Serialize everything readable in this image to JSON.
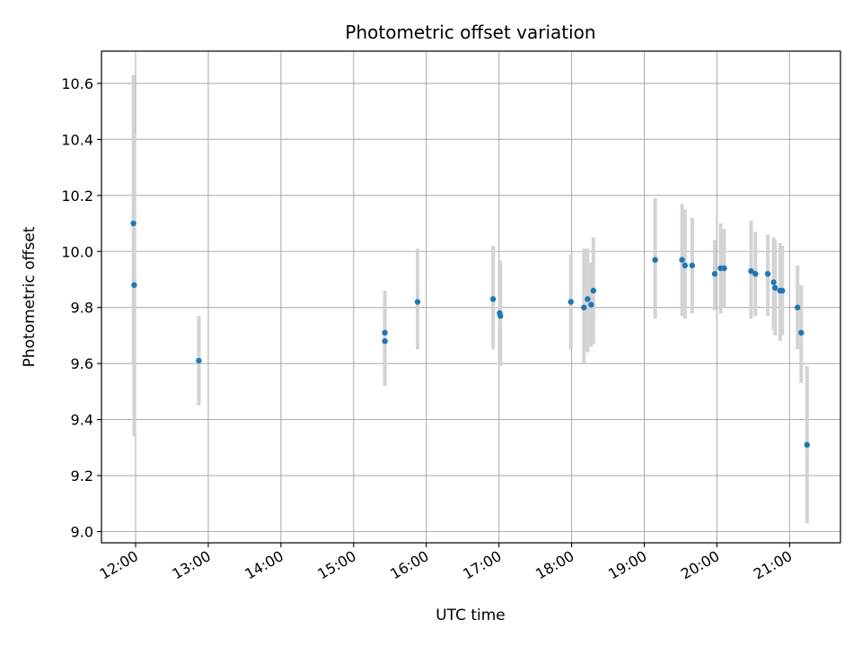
{
  "chart_data": {
    "type": "scatter",
    "title": "Photometric offset variation",
    "xlabel": "UTC time",
    "ylabel": "Photometric offset",
    "x_unit": "hours UTC",
    "xlim": [
      11.53,
      21.7
    ],
    "ylim": [
      8.96,
      10.715
    ],
    "grid": true,
    "x_ticks": [
      {
        "value": 12,
        "label": "12:00"
      },
      {
        "value": 13,
        "label": "13:00"
      },
      {
        "value": 14,
        "label": "14:00"
      },
      {
        "value": 15,
        "label": "15:00"
      },
      {
        "value": 16,
        "label": "16:00"
      },
      {
        "value": 17,
        "label": "17:00"
      },
      {
        "value": 18,
        "label": "18:00"
      },
      {
        "value": 19,
        "label": "19:00"
      },
      {
        "value": 20,
        "label": "20:00"
      },
      {
        "value": 21,
        "label": "21:00"
      }
    ],
    "y_ticks": [
      {
        "value": 9.0,
        "label": "9.0"
      },
      {
        "value": 9.2,
        "label": "9.2"
      },
      {
        "value": 9.4,
        "label": "9.4"
      },
      {
        "value": 9.6,
        "label": "9.6"
      },
      {
        "value": 9.8,
        "label": "9.8"
      },
      {
        "value": 10.0,
        "label": "10.0"
      },
      {
        "value": 10.2,
        "label": "10.2"
      },
      {
        "value": 10.4,
        "label": "10.4"
      },
      {
        "value": 10.6,
        "label": "10.6"
      }
    ],
    "marker_color": "#1f77b4",
    "errorbar_color": "#d3d3d3",
    "points": [
      {
        "x": 11.97,
        "y": 10.1,
        "err_low": 9.6,
        "err_high": 10.63
      },
      {
        "x": 11.98,
        "y": 9.88,
        "err_low": 9.34,
        "err_high": 10.42
      },
      {
        "x": 12.87,
        "y": 9.61,
        "err_low": 9.45,
        "err_high": 9.77
      },
      {
        "x": 15.43,
        "y": 9.71,
        "err_low": 9.52,
        "err_high": 9.86
      },
      {
        "x": 15.43,
        "y": 9.68,
        "err_low": 9.55,
        "err_high": 9.82
      },
      {
        "x": 15.88,
        "y": 9.82,
        "err_low": 9.65,
        "err_high": 10.01
      },
      {
        "x": 16.92,
        "y": 9.83,
        "err_low": 9.65,
        "err_high": 10.02
      },
      {
        "x": 17.01,
        "y": 9.78,
        "err_low": 9.6,
        "err_high": 9.97
      },
      {
        "x": 17.02,
        "y": 9.77,
        "err_low": 9.59,
        "err_high": 9.96
      },
      {
        "x": 17.99,
        "y": 9.82,
        "err_low": 9.65,
        "err_high": 9.99
      },
      {
        "x": 18.17,
        "y": 9.8,
        "err_low": 9.6,
        "err_high": 10.01
      },
      {
        "x": 18.22,
        "y": 9.83,
        "err_low": 9.64,
        "err_high": 10.01
      },
      {
        "x": 18.27,
        "y": 9.81,
        "err_low": 9.66,
        "err_high": 9.96
      },
      {
        "x": 18.3,
        "y": 9.86,
        "err_low": 9.67,
        "err_high": 10.05
      },
      {
        "x": 19.15,
        "y": 9.97,
        "err_low": 9.76,
        "err_high": 10.19
      },
      {
        "x": 19.52,
        "y": 9.97,
        "err_low": 9.77,
        "err_high": 10.17
      },
      {
        "x": 19.56,
        "y": 9.95,
        "err_low": 9.76,
        "err_high": 10.15
      },
      {
        "x": 19.66,
        "y": 9.95,
        "err_low": 9.78,
        "err_high": 10.12
      },
      {
        "x": 19.97,
        "y": 9.92,
        "err_low": 9.79,
        "err_high": 10.04
      },
      {
        "x": 20.05,
        "y": 9.94,
        "err_low": 9.78,
        "err_high": 10.1
      },
      {
        "x": 20.1,
        "y": 9.94,
        "err_low": 9.8,
        "err_high": 10.08
      },
      {
        "x": 20.47,
        "y": 9.93,
        "err_low": 9.76,
        "err_high": 10.11
      },
      {
        "x": 20.53,
        "y": 9.92,
        "err_low": 9.77,
        "err_high": 10.07
      },
      {
        "x": 20.7,
        "y": 9.92,
        "err_low": 9.77,
        "err_high": 10.06
      },
      {
        "x": 20.78,
        "y": 9.89,
        "err_low": 9.72,
        "err_high": 10.05
      },
      {
        "x": 20.8,
        "y": 9.87,
        "err_low": 9.7,
        "err_high": 10.04
      },
      {
        "x": 20.87,
        "y": 9.86,
        "err_low": 9.68,
        "err_high": 10.03
      },
      {
        "x": 20.9,
        "y": 9.86,
        "err_low": 9.7,
        "err_high": 10.02
      },
      {
        "x": 21.11,
        "y": 9.8,
        "err_low": 9.65,
        "err_high": 9.95
      },
      {
        "x": 21.16,
        "y": 9.71,
        "err_low": 9.53,
        "err_high": 9.88
      },
      {
        "x": 21.24,
        "y": 9.31,
        "err_low": 9.03,
        "err_high": 9.59
      }
    ]
  }
}
